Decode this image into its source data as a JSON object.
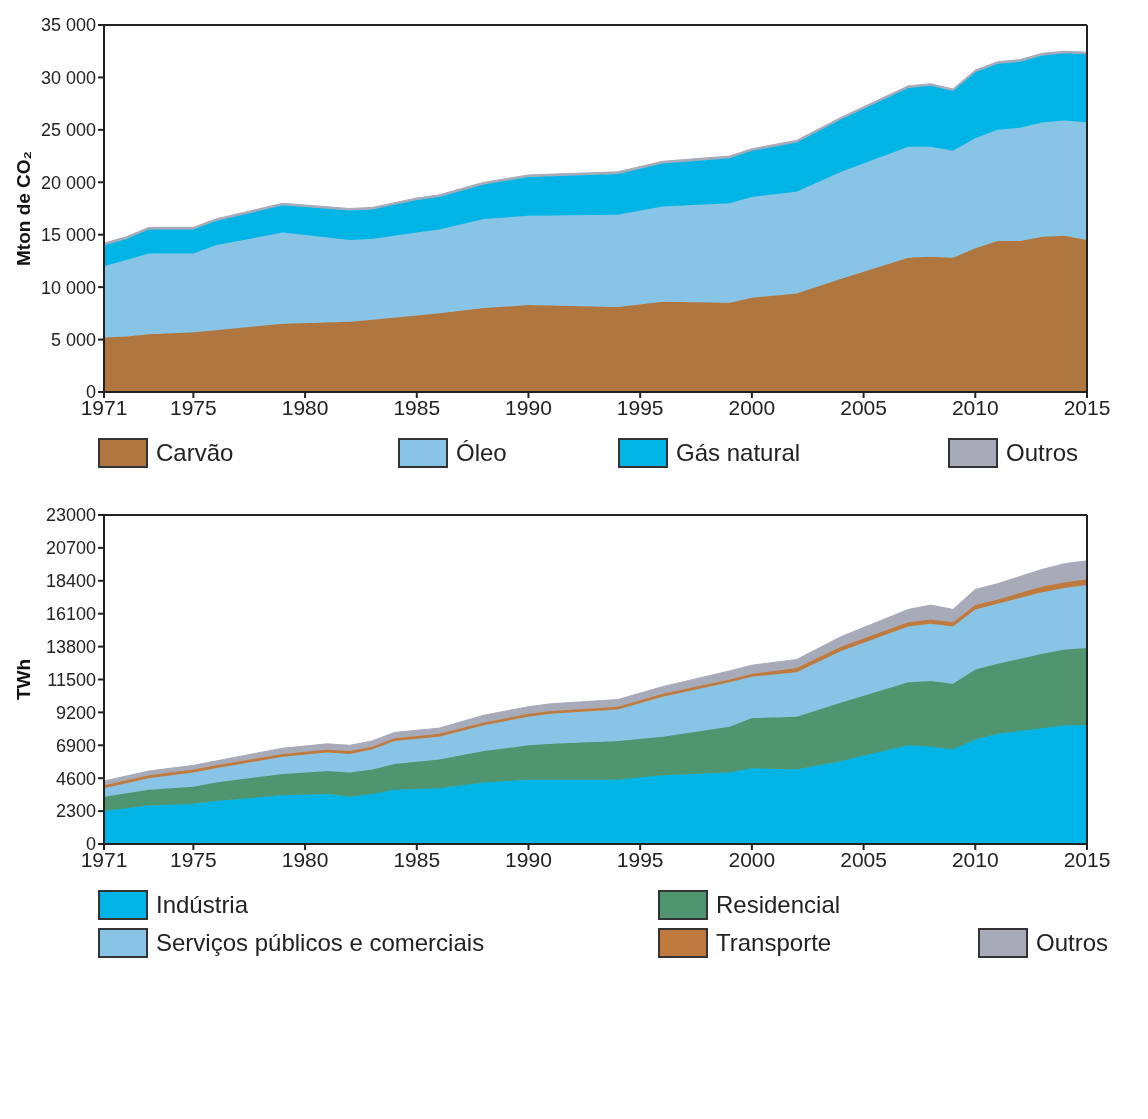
{
  "chart_data": [
    {
      "type": "area",
      "stacked": true,
      "ylabel": "Mton de CO₂",
      "legend": "bottom",
      "grid": false,
      "x": [
        1971,
        1972,
        1973,
        1975,
        1976,
        1979,
        1982,
        1983,
        1985,
        1986,
        1988,
        1990,
        1994,
        1996,
        1999,
        2000,
        2002,
        2004,
        2007,
        2008,
        2009,
        2010,
        2011,
        2012,
        2013,
        2014,
        2015
      ],
      "xlim": [
        1971,
        2015
      ],
      "xticks": [
        1971,
        1975,
        1980,
        1985,
        1990,
        1995,
        2000,
        2005,
        2010,
        2015
      ],
      "ylim": [
        0,
        35000
      ],
      "yticks": [
        0,
        {
          "value": 5000,
          "label": "5 000"
        },
        {
          "value": 10000,
          "label": "10 000"
        },
        {
          "value": 15000,
          "label": "15 000"
        },
        {
          "value": 20000,
          "label": "20 000"
        },
        {
          "value": 25000,
          "label": "25 000"
        },
        {
          "value": 30000,
          "label": "30 000"
        },
        {
          "value": 35000,
          "label": "35 000"
        }
      ],
      "series": [
        {
          "name": "Carvão",
          "color": "#b0763f",
          "values": [
            5200,
            5300,
            5500,
            5700,
            5900,
            6500,
            6700,
            6900,
            7300,
            7500,
            8000,
            8300,
            8100,
            8600,
            8500,
            9000,
            9400,
            10800,
            12800,
            12900,
            12800,
            13700,
            14400,
            14400,
            14800,
            14900,
            14500
          ]
        },
        {
          "name": "Óleo",
          "color": "#87c4e6",
          "values": [
            6800,
            7300,
            7700,
            7500,
            8100,
            8700,
            7800,
            7700,
            7900,
            8000,
            8500,
            8500,
            8800,
            9100,
            9500,
            9600,
            9700,
            10200,
            10600,
            10500,
            10200,
            10500,
            10600,
            10800,
            10900,
            11000,
            11200
          ]
        },
        {
          "name": "Gás natural",
          "color": "#00b5e5",
          "values": [
            2000,
            2000,
            2300,
            2300,
            2300,
            2600,
            2800,
            2800,
            3100,
            3100,
            3300,
            3700,
            3900,
            4100,
            4300,
            4400,
            4700,
            5000,
            5600,
            5800,
            5700,
            6300,
            6300,
            6300,
            6400,
            6400,
            6500
          ]
        },
        {
          "name": "Outros",
          "color": "#a7aab8",
          "values": [
            200,
            200,
            200,
            200,
            200,
            200,
            200,
            200,
            200,
            200,
            200,
            200,
            200,
            200,
            200,
            200,
            200,
            200,
            200,
            200,
            200,
            200,
            200,
            200,
            200,
            200,
            200
          ]
        }
      ]
    },
    {
      "type": "area",
      "stacked": true,
      "ylabel": "TWh",
      "legend": "bottom",
      "grid": false,
      "x": [
        1971,
        1973,
        1975,
        1976,
        1979,
        1981,
        1982,
        1983,
        1984,
        1986,
        1988,
        1990,
        1991,
        1994,
        1996,
        1999,
        2000,
        2002,
        2004,
        2007,
        2008,
        2009,
        2010,
        2011,
        2013,
        2014,
        2015
      ],
      "xlim": [
        1971,
        2015
      ],
      "xticks": [
        1971,
        1975,
        1980,
        1985,
        1990,
        1995,
        2000,
        2005,
        2010,
        2015
      ],
      "ylim": [
        0,
        23000
      ],
      "yticks": [
        0,
        2300,
        4600,
        6900,
        9200,
        11500,
        13800,
        16100,
        18400,
        20700,
        23000
      ],
      "series": [
        {
          "name": "Indústria",
          "color": "#00b5e5",
          "values": [
            2300,
            2700,
            2800,
            3000,
            3400,
            3500,
            3300,
            3500,
            3800,
            3900,
            4300,
            4500,
            4500,
            4500,
            4800,
            5000,
            5300,
            5200,
            5800,
            6900,
            6800,
            6600,
            7300,
            7700,
            8100,
            8300,
            8300
          ]
        },
        {
          "name": "Residencial",
          "color": "#4e9570",
          "values": [
            1000,
            1100,
            1200,
            1300,
            1500,
            1600,
            1700,
            1700,
            1800,
            2000,
            2200,
            2400,
            2500,
            2700,
            2700,
            3200,
            3500,
            3700,
            4100,
            4400,
            4600,
            4600,
            4900,
            4900,
            5200,
            5300,
            5400
          ]
        },
        {
          "name": "Serviços públicos e comerciais",
          "color": "#87c4e6",
          "values": [
            600,
            800,
            1000,
            1000,
            1200,
            1300,
            1300,
            1400,
            1600,
            1600,
            1800,
            2000,
            2100,
            2200,
            2800,
            3100,
            2900,
            3100,
            3600,
            3900,
            4000,
            4000,
            4200,
            4200,
            4300,
            4300,
            4400
          ]
        },
        {
          "name": "Transporte",
          "color": "#bf7b3f",
          "values": [
            200,
            200,
            200,
            200,
            200,
            200,
            200,
            200,
            200,
            200,
            200,
            200,
            200,
            200,
            200,
            200,
            200,
            300,
            300,
            300,
            300,
            300,
            300,
            300,
            400,
            400,
            400
          ]
        },
        {
          "name": "Outros",
          "color": "#a7aab8",
          "values": [
            300,
            300,
            300,
            300,
            400,
            400,
            400,
            400,
            400,
            400,
            500,
            500,
            500,
            500,
            500,
            600,
            600,
            600,
            700,
            900,
            1000,
            900,
            1100,
            1100,
            1200,
            1300,
            1300
          ]
        }
      ]
    }
  ]
}
